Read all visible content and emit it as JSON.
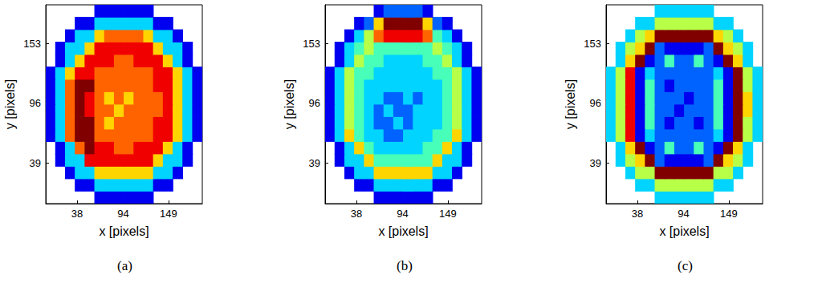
{
  "chart_data": [
    {
      "type": "heatmap",
      "caption": "(a)",
      "xlabel": "x [pixels]",
      "ylabel": "y [pixels]",
      "xlim": [
        0,
        190
      ],
      "ylim": [
        0,
        190
      ],
      "xticks": [
        38,
        94,
        149
      ],
      "yticks": [
        39,
        96,
        153
      ],
      "grid": false,
      "color_range": [
        0,
        9
      ],
      "x": [
        5.94,
        17.81,
        29.69,
        41.56,
        53.44,
        65.31,
        77.19,
        89.06,
        100.94,
        112.81,
        124.69,
        136.56,
        148.44,
        160.31,
        172.19,
        184.06
      ],
      "y": [
        5.94,
        17.81,
        29.69,
        41.56,
        53.44,
        65.31,
        77.19,
        89.06,
        100.94,
        112.81,
        124.69,
        136.56,
        148.44,
        160.31,
        172.19,
        184.06
      ],
      "cells": [
        [
          null,
          null,
          null,
          null,
          null,
          1,
          1,
          1,
          1,
          1,
          1,
          null,
          null,
          null,
          null,
          null
        ],
        [
          null,
          null,
          null,
          1,
          1,
          3,
          3,
          3,
          3,
          3,
          3,
          1,
          1,
          null,
          null,
          null
        ],
        [
          null,
          null,
          1,
          3,
          3,
          6,
          6,
          6,
          6,
          6,
          6,
          3,
          3,
          1,
          null,
          null
        ],
        [
          null,
          1,
          3,
          3,
          8,
          8,
          8,
          8,
          8,
          8,
          8,
          6,
          3,
          3,
          1,
          null
        ],
        [
          null,
          1,
          3,
          7,
          9,
          8,
          8,
          7,
          7,
          8,
          8,
          8,
          6,
          3,
          1,
          null
        ],
        [
          1,
          3,
          7,
          9,
          9,
          7,
          7,
          7,
          7,
          7,
          7,
          8,
          8,
          6,
          3,
          1
        ],
        [
          1,
          3,
          7,
          9,
          9,
          7,
          6,
          7,
          7,
          7,
          7,
          8,
          8,
          6,
          3,
          1
        ],
        [
          1,
          3,
          7,
          9,
          8,
          7,
          7,
          6,
          7,
          7,
          7,
          7,
          8,
          6,
          3,
          1
        ],
        [
          1,
          3,
          7,
          9,
          8,
          7,
          6,
          7,
          6,
          7,
          7,
          7,
          8,
          6,
          3,
          1
        ],
        [
          1,
          3,
          7,
          9,
          9,
          7,
          7,
          7,
          7,
          7,
          7,
          8,
          8,
          6,
          3,
          1
        ],
        [
          1,
          3,
          6,
          8,
          8,
          7,
          7,
          7,
          7,
          7,
          7,
          8,
          8,
          6,
          3,
          1
        ],
        [
          null,
          1,
          3,
          6,
          8,
          8,
          8,
          7,
          7,
          8,
          8,
          8,
          6,
          3,
          1,
          null
        ],
        [
          null,
          1,
          3,
          3,
          6,
          8,
          8,
          8,
          8,
          8,
          8,
          6,
          3,
          3,
          1,
          null
        ],
        [
          null,
          null,
          1,
          3,
          3,
          6,
          7,
          7,
          7,
          7,
          6,
          3,
          3,
          1,
          null,
          null
        ],
        [
          null,
          null,
          null,
          1,
          1,
          3,
          3,
          3,
          3,
          3,
          3,
          1,
          1,
          null,
          null,
          null
        ],
        [
          null,
          null,
          null,
          null,
          null,
          1,
          1,
          1,
          1,
          1,
          1,
          null,
          null,
          null,
          null,
          null
        ]
      ]
    },
    {
      "type": "heatmap",
      "caption": "(b)",
      "xlabel": "x [pixels]",
      "ylabel": "y [pixels]",
      "xlim": [
        0,
        190
      ],
      "ylim": [
        0,
        190
      ],
      "xticks": [
        38,
        94,
        149
      ],
      "yticks": [
        39,
        96,
        153
      ],
      "grid": false,
      "color_range": [
        0,
        9
      ],
      "x": [
        5.94,
        17.81,
        29.69,
        41.56,
        53.44,
        65.31,
        77.19,
        89.06,
        100.94,
        112.81,
        124.69,
        136.56,
        148.44,
        160.31,
        172.19,
        184.06
      ],
      "y": [
        5.94,
        17.81,
        29.69,
        41.56,
        53.44,
        65.31,
        77.19,
        89.06,
        100.94,
        112.81,
        124.69,
        136.56,
        148.44,
        160.31,
        172.19,
        184.06
      ],
      "cells": [
        [
          null,
          null,
          null,
          null,
          null,
          1,
          1,
          1,
          1,
          1,
          1,
          null,
          null,
          null,
          null,
          null
        ],
        [
          null,
          null,
          null,
          1,
          1,
          3,
          3,
          3,
          3,
          3,
          3,
          1,
          1,
          null,
          null,
          null
        ],
        [
          null,
          null,
          1,
          3,
          3,
          6,
          6,
          6,
          6,
          6,
          6,
          3,
          3,
          1,
          null,
          null
        ],
        [
          null,
          1,
          3,
          3,
          6,
          4,
          4,
          4,
          4,
          4,
          4,
          6,
          3,
          3,
          1,
          null
        ],
        [
          null,
          1,
          3,
          6,
          4,
          3,
          3,
          3,
          3,
          3,
          4,
          4,
          6,
          3,
          1,
          null
        ],
        [
          1,
          3,
          6,
          4,
          3,
          3,
          2,
          2,
          3,
          3,
          3,
          4,
          4,
          6,
          3,
          1
        ],
        [
          1,
          3,
          5,
          4,
          3,
          2,
          2,
          3,
          2,
          3,
          3,
          3,
          4,
          5,
          3,
          1
        ],
        [
          1,
          3,
          5,
          4,
          3,
          2,
          3,
          2,
          2,
          3,
          3,
          3,
          4,
          5,
          3,
          1
        ],
        [
          1,
          3,
          5,
          4,
          3,
          3,
          2,
          2,
          3,
          2,
          3,
          3,
          4,
          5,
          3,
          1
        ],
        [
          1,
          3,
          5,
          4,
          3,
          3,
          3,
          3,
          3,
          3,
          3,
          3,
          4,
          5,
          3,
          1
        ],
        [
          1,
          3,
          5,
          4,
          4,
          3,
          3,
          3,
          3,
          3,
          3,
          4,
          4,
          5,
          3,
          1
        ],
        [
          null,
          1,
          3,
          5,
          4,
          4,
          3,
          3,
          3,
          3,
          4,
          4,
          5,
          3,
          1,
          null
        ],
        [
          null,
          1,
          3,
          4,
          5,
          4,
          4,
          4,
          4,
          4,
          4,
          5,
          4,
          3,
          1,
          null
        ],
        [
          null,
          null,
          1,
          3,
          5,
          7,
          8,
          8,
          8,
          8,
          7,
          4,
          3,
          1,
          null,
          null
        ],
        [
          null,
          null,
          null,
          1,
          2,
          6,
          9,
          9,
          9,
          9,
          6,
          2,
          1,
          null,
          null,
          null
        ],
        [
          null,
          null,
          null,
          null,
          null,
          1,
          2,
          2,
          2,
          2,
          1,
          null,
          null,
          null,
          null,
          null
        ]
      ]
    },
    {
      "type": "heatmap",
      "caption": "(c)",
      "xlabel": "x [pixels]",
      "ylabel": "y [pixels]",
      "xlim": [
        0,
        190
      ],
      "ylim": [
        0,
        190
      ],
      "xticks": [
        38,
        94,
        149
      ],
      "yticks": [
        39,
        96,
        153
      ],
      "grid": false,
      "color_range": [
        0,
        9
      ],
      "x": [
        5.94,
        17.81,
        29.69,
        41.56,
        53.44,
        65.31,
        77.19,
        89.06,
        100.94,
        112.81,
        124.69,
        136.56,
        148.44,
        160.31,
        172.19,
        184.06
      ],
      "y": [
        5.94,
        17.81,
        29.69,
        41.56,
        53.44,
        65.31,
        77.19,
        89.06,
        100.94,
        112.81,
        124.69,
        136.56,
        148.44,
        160.31,
        172.19,
        184.06
      ],
      "cells": [
        [
          null,
          null,
          null,
          null,
          null,
          3,
          3,
          3,
          3,
          3,
          3,
          null,
          null,
          null,
          null,
          null
        ],
        [
          null,
          null,
          null,
          3,
          3,
          5,
          5,
          5,
          5,
          5,
          5,
          3,
          3,
          null,
          null,
          null
        ],
        [
          null,
          null,
          3,
          5,
          5,
          9,
          9,
          9,
          9,
          9,
          9,
          5,
          5,
          3,
          null,
          null
        ],
        [
          null,
          3,
          5,
          6,
          9,
          2,
          1,
          1,
          1,
          1,
          2,
          9,
          6,
          5,
          3,
          null
        ],
        [
          null,
          3,
          6,
          9,
          1,
          2,
          4,
          2,
          2,
          4,
          2,
          1,
          9,
          6,
          3,
          null
        ],
        [
          3,
          5,
          8,
          1,
          3,
          2,
          2,
          2,
          2,
          2,
          2,
          3,
          1,
          9,
          5,
          3
        ],
        [
          3,
          5,
          8,
          1,
          4,
          2,
          1,
          2,
          2,
          1,
          2,
          4,
          1,
          9,
          5,
          3
        ],
        [
          3,
          5,
          8,
          1,
          4,
          2,
          2,
          1,
          2,
          2,
          2,
          4,
          1,
          9,
          6,
          3
        ],
        [
          3,
          5,
          8,
          1,
          4,
          2,
          2,
          2,
          1,
          2,
          2,
          4,
          1,
          9,
          6,
          3
        ],
        [
          3,
          5,
          8,
          1,
          4,
          2,
          1,
          2,
          2,
          2,
          2,
          4,
          1,
          9,
          5,
          3
        ],
        [
          3,
          5,
          8,
          1,
          3,
          2,
          2,
          2,
          2,
          2,
          2,
          3,
          1,
          9,
          5,
          3
        ],
        [
          null,
          3,
          6,
          9,
          1,
          2,
          4,
          2,
          2,
          4,
          2,
          1,
          9,
          6,
          3,
          null
        ],
        [
          null,
          3,
          5,
          6,
          9,
          2,
          1,
          1,
          1,
          1,
          2,
          9,
          6,
          5,
          3,
          null
        ],
        [
          null,
          null,
          3,
          5,
          6,
          9,
          9,
          9,
          9,
          9,
          9,
          6,
          5,
          3,
          null,
          null
        ],
        [
          null,
          null,
          null,
          3,
          3,
          5,
          5,
          5,
          5,
          5,
          5,
          3,
          3,
          null,
          null,
          null
        ],
        [
          null,
          null,
          null,
          null,
          null,
          3,
          3,
          3,
          3,
          3,
          3,
          null,
          null,
          null,
          null,
          null
        ]
      ]
    }
  ]
}
